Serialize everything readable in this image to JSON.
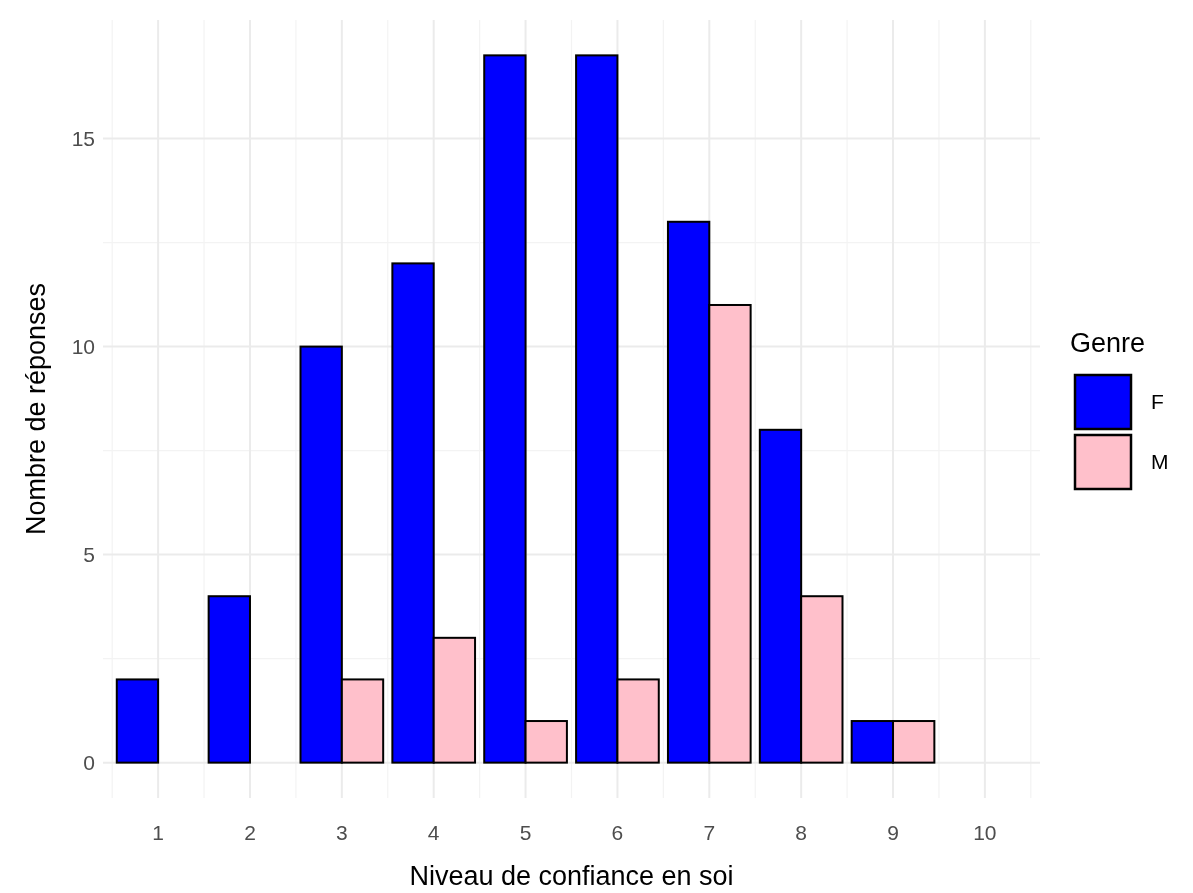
{
  "chart_data": {
    "type": "bar",
    "xlabel": "Niveau de confiance en soi",
    "ylabel": "Nombre de réponses",
    "legend_title": "Genre",
    "categories": [
      "1",
      "2",
      "3",
      "4",
      "5",
      "6",
      "7",
      "8",
      "9",
      "10"
    ],
    "series": [
      {
        "name": "F",
        "color": "#0000ff",
        "values": [
          2,
          4,
          10,
          12,
          17,
          17,
          13,
          8,
          1,
          0
        ]
      },
      {
        "name": "M",
        "color": "#ffc0cb",
        "values": [
          0,
          0,
          2,
          3,
          1,
          2,
          11,
          4,
          1,
          0
        ]
      }
    ],
    "ylim": [
      -0.85,
      17.85
    ],
    "yticks": [
      0,
      5,
      10,
      15
    ],
    "grid": true,
    "legend": "right"
  }
}
